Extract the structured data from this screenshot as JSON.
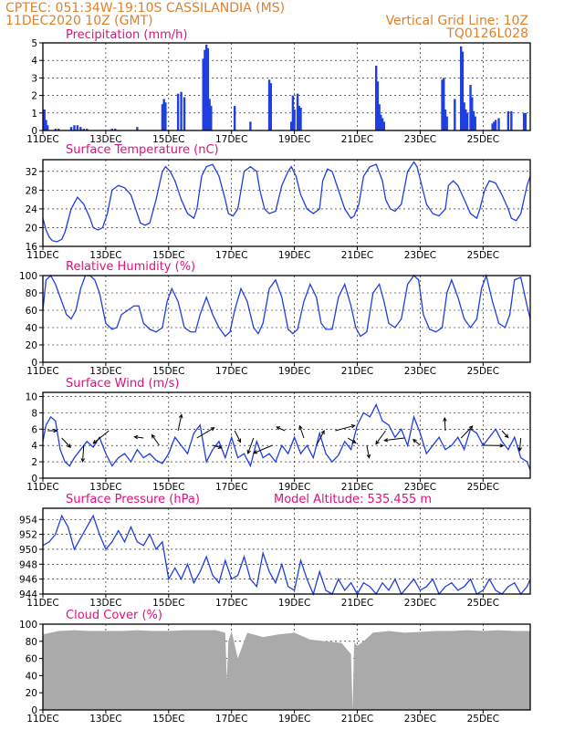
{
  "header": {
    "line1_left": "CPTEC:   051:34W-19:10S   CASSILANDIA (MS)",
    "line2_left": "11DEC2020  10Z (GMT)",
    "line1_right": "Vertical Grid Line: 10Z",
    "line2_right": "TQ0126L028"
  },
  "x_ticks": [
    "11DEC",
    "13DEC",
    "15DEC",
    "17DEC",
    "19DEC",
    "21DEC",
    "23DEC",
    "25DEC"
  ],
  "x_day_indices": [
    0,
    2,
    4,
    6,
    8,
    10,
    12,
    14
  ],
  "x_range_days": [
    0,
    15.5
  ],
  "chart_data": [
    {
      "type": "bar",
      "title": "Precipitation (mm/h)",
      "ylim": [
        0,
        5
      ],
      "yticks": [
        0,
        1,
        2,
        3,
        4,
        5
      ],
      "grid": true,
      "x": [
        0.05,
        0.1,
        0.15,
        0.4,
        0.5,
        0.9,
        1.0,
        1.1,
        1.2,
        1.3,
        1.4,
        2.2,
        2.3,
        3.0,
        3.8,
        3.85,
        3.9,
        4.3,
        4.4,
        4.5,
        5.1,
        5.15,
        5.2,
        5.25,
        5.3,
        5.35,
        6.1,
        6.6,
        7.2,
        7.25,
        7.9,
        7.95,
        8.0,
        8.1,
        8.15,
        8.2,
        10.6,
        10.65,
        10.7,
        10.75,
        10.8,
        10.85,
        12.7,
        12.75,
        12.8,
        12.85,
        13.1,
        13.3,
        13.35,
        13.4,
        13.45,
        13.5,
        13.6,
        13.65,
        13.7,
        13.75,
        14.3,
        14.35,
        14.4,
        14.5,
        14.8,
        14.9,
        15.3,
        15.35
      ],
      "values": [
        1.2,
        0.6,
        0.3,
        0.1,
        0.1,
        0.2,
        0.3,
        0.3,
        0.2,
        0.1,
        0.1,
        0.1,
        0.1,
        0.2,
        1.5,
        1.8,
        1.6,
        2.1,
        2.2,
        1.9,
        4.1,
        4.6,
        4.9,
        4.7,
        1.8,
        1.4,
        1.4,
        0.5,
        2.9,
        2.7,
        0.5,
        2.0,
        1.2,
        2.1,
        1.4,
        1.3,
        3.7,
        2.8,
        1.5,
        0.9,
        0.7,
        0.5,
        2.9,
        3.0,
        1.2,
        0.8,
        1.8,
        4.8,
        4.5,
        1.6,
        1.2,
        1.0,
        2.6,
        1.9,
        1.1,
        0.8,
        0.4,
        0.5,
        0.6,
        0.7,
        1.1,
        1.1,
        1.0,
        1.0
      ]
    },
    {
      "type": "line",
      "title": "Surface Temperature (nC)",
      "ylim": [
        16,
        34.5
      ],
      "yticks": [
        16,
        20,
        24,
        28,
        32
      ],
      "grid": true,
      "x": [
        0,
        0.1,
        0.2,
        0.3,
        0.45,
        0.6,
        0.7,
        0.9,
        1.1,
        1.3,
        1.5,
        1.6,
        1.75,
        1.9,
        2.05,
        2.2,
        2.4,
        2.6,
        2.8,
        3.0,
        3.1,
        3.25,
        3.4,
        3.6,
        3.8,
        3.9,
        4.05,
        4.2,
        4.4,
        4.6,
        4.8,
        4.9,
        5.05,
        5.2,
        5.4,
        5.6,
        5.8,
        5.9,
        6.05,
        6.2,
        6.4,
        6.6,
        6.8,
        6.9,
        7.05,
        7.2,
        7.4,
        7.6,
        7.8,
        7.9,
        8.05,
        8.2,
        8.4,
        8.6,
        8.8,
        8.9,
        9.05,
        9.2,
        9.4,
        9.6,
        9.8,
        9.9,
        10.05,
        10.2,
        10.4,
        10.6,
        10.8,
        10.9,
        11.05,
        11.2,
        11.4,
        11.6,
        11.8,
        11.9,
        12.05,
        12.2,
        12.4,
        12.6,
        12.8,
        12.9,
        13.05,
        13.2,
        13.4,
        13.6,
        13.8,
        13.9,
        14.05,
        14.2,
        14.4,
        14.6,
        14.8,
        14.9,
        15.05,
        15.2,
        15.4,
        15.5
      ],
      "values": [
        22,
        19.5,
        18,
        17.2,
        17,
        17.5,
        19,
        24,
        26.5,
        25,
        22,
        20,
        19.5,
        20,
        23,
        28,
        29,
        28.5,
        27,
        23,
        21,
        20.5,
        21,
        26,
        32,
        33,
        32,
        30,
        26,
        23,
        22,
        24,
        31,
        33,
        33.5,
        31,
        26,
        23,
        22.5,
        24,
        32,
        33,
        32,
        28,
        24,
        23,
        23.5,
        29,
        32,
        33,
        31,
        27,
        24,
        23,
        24,
        30,
        32.5,
        32,
        28,
        24,
        22,
        22.5,
        25,
        31,
        33,
        33.5,
        30,
        26,
        24,
        23.5,
        25,
        32,
        34,
        33,
        29,
        25,
        23,
        22.5,
        24,
        29,
        30,
        29,
        26,
        23,
        22,
        24,
        28,
        30,
        29.5,
        27,
        24,
        22,
        21.5,
        23,
        29,
        31
      ],
      "show_as": "line"
    },
    {
      "type": "line",
      "title": "Relative Humidity (%)",
      "ylim": [
        0,
        100
      ],
      "yticks": [
        0,
        20,
        40,
        60,
        80,
        100
      ],
      "grid": true,
      "x": [
        0,
        0.1,
        0.25,
        0.4,
        0.6,
        0.75,
        0.9,
        1.05,
        1.2,
        1.35,
        1.5,
        1.65,
        1.8,
        2.0,
        2.2,
        2.35,
        2.5,
        2.7,
        2.9,
        3.05,
        3.2,
        3.4,
        3.6,
        3.8,
        3.95,
        4.1,
        4.3,
        4.5,
        4.7,
        4.85,
        5.0,
        5.2,
        5.4,
        5.6,
        5.8,
        5.95,
        6.1,
        6.3,
        6.5,
        6.7,
        6.85,
        7.0,
        7.2,
        7.4,
        7.6,
        7.8,
        7.95,
        8.1,
        8.3,
        8.5,
        8.7,
        8.85,
        9.0,
        9.2,
        9.4,
        9.6,
        9.8,
        9.95,
        10.1,
        10.3,
        10.5,
        10.7,
        10.85,
        11.0,
        11.2,
        11.4,
        11.6,
        11.8,
        11.95,
        12.1,
        12.3,
        12.5,
        12.7,
        12.85,
        13.0,
        13.2,
        13.4,
        13.6,
        13.8,
        13.95,
        14.1,
        14.3,
        14.5,
        14.7,
        14.85,
        15.0,
        15.2,
        15.4,
        15.5
      ],
      "values": [
        60,
        95,
        100,
        90,
        70,
        55,
        50,
        60,
        85,
        100,
        100,
        95,
        80,
        45,
        38,
        40,
        55,
        60,
        65,
        65,
        45,
        38,
        35,
        40,
        70,
        85,
        70,
        40,
        35,
        35,
        55,
        75,
        55,
        40,
        30,
        35,
        60,
        85,
        70,
        40,
        33,
        45,
        85,
        95,
        75,
        38,
        33,
        38,
        70,
        90,
        75,
        45,
        38,
        38,
        75,
        90,
        65,
        40,
        30,
        35,
        80,
        90,
        70,
        45,
        40,
        50,
        90,
        100,
        95,
        55,
        38,
        35,
        40,
        80,
        95,
        75,
        50,
        40,
        50,
        85,
        100,
        70,
        45,
        40,
        55,
        95,
        98,
        65,
        50
      ],
      "show_as": "line"
    },
    {
      "type": "line",
      "title": "Surface Wind (m/s)",
      "ylim": [
        0,
        10.5
      ],
      "yticks": [
        0,
        2,
        4,
        6,
        8,
        10
      ],
      "grid": true,
      "x": [
        0,
        0.1,
        0.25,
        0.4,
        0.55,
        0.7,
        0.85,
        1.0,
        1.2,
        1.4,
        1.6,
        1.8,
        2.0,
        2.2,
        2.4,
        2.6,
        2.8,
        3.0,
        3.2,
        3.4,
        3.6,
        3.8,
        4.0,
        4.2,
        4.4,
        4.6,
        4.8,
        5.0,
        5.2,
        5.4,
        5.6,
        5.8,
        6.0,
        6.2,
        6.4,
        6.6,
        6.8,
        7.0,
        7.2,
        7.4,
        7.6,
        7.8,
        8.0,
        8.2,
        8.4,
        8.6,
        8.8,
        9.0,
        9.2,
        9.4,
        9.6,
        9.8,
        10.0,
        10.2,
        10.4,
        10.6,
        10.8,
        11.0,
        11.2,
        11.4,
        11.6,
        11.8,
        12.0,
        12.2,
        12.4,
        12.6,
        12.8,
        13.0,
        13.2,
        13.4,
        13.6,
        13.8,
        14.0,
        14.2,
        14.4,
        14.6,
        14.8,
        15.0,
        15.2,
        15.4,
        15.5
      ],
      "values": [
        4.5,
        6.5,
        7.5,
        7.0,
        3.5,
        2.0,
        1.5,
        2.5,
        3.5,
        4.5,
        3.8,
        5.0,
        3.0,
        1.5,
        2.5,
        3.0,
        2.0,
        3.5,
        2.5,
        3.0,
        2.2,
        1.8,
        3.0,
        5.0,
        4.0,
        3.0,
        5.5,
        6.5,
        2.0,
        3.5,
        4.5,
        2.5,
        5.0,
        2.5,
        3.0,
        1.5,
        4.5,
        2.5,
        3.0,
        2.0,
        4.0,
        3.0,
        5.0,
        3.0,
        4.0,
        2.5,
        5.5,
        3.0,
        2.0,
        2.8,
        4.5,
        3.5,
        6.5,
        8.0,
        7.5,
        9.0,
        7.0,
        6.5,
        5.0,
        6.0,
        4.0,
        7.5,
        5.5,
        3.0,
        4.0,
        5.0,
        3.5,
        4.0,
        5.0,
        3.5,
        6.0,
        5.5,
        4.0,
        5.0,
        6.0,
        4.5,
        3.5,
        5.0,
        2.5,
        2.0,
        1.0
      ],
      "show_as": "line"
    },
    {
      "type": "line",
      "title": "Surface Pressure (hPa)",
      "annotation": "Model Altitude: 535.455  m",
      "ylim": [
        944,
        955.5
      ],
      "yticks": [
        944,
        946,
        948,
        950,
        952,
        954
      ],
      "grid": true,
      "x": [
        0,
        0.2,
        0.4,
        0.6,
        0.8,
        1.0,
        1.2,
        1.4,
        1.6,
        1.8,
        2.0,
        2.2,
        2.4,
        2.6,
        2.8,
        3.0,
        3.2,
        3.4,
        3.6,
        3.8,
        4.0,
        4.2,
        4.4,
        4.6,
        4.8,
        5.0,
        5.2,
        5.4,
        5.6,
        5.8,
        6.0,
        6.2,
        6.4,
        6.6,
        6.8,
        7.0,
        7.2,
        7.4,
        7.6,
        7.8,
        8.0,
        8.2,
        8.4,
        8.6,
        8.8,
        9.0,
        9.2,
        9.4,
        9.6,
        9.8,
        10.0,
        10.2,
        10.4,
        10.6,
        10.8,
        11.0,
        11.2,
        11.4,
        11.6,
        11.8,
        12.0,
        12.2,
        12.4,
        12.6,
        12.8,
        13.0,
        13.2,
        13.4,
        13.6,
        13.8,
        14.0,
        14.2,
        14.4,
        14.6,
        14.8,
        15.0,
        15.2,
        15.4,
        15.5
      ],
      "values": [
        950.5,
        951,
        952,
        954.5,
        953,
        950,
        951.5,
        953,
        954.5,
        952,
        950,
        951,
        952.5,
        951,
        953,
        951,
        950.5,
        952,
        950,
        951,
        946,
        947.5,
        946,
        948,
        945.5,
        947,
        949,
        946.5,
        945.5,
        948.5,
        946,
        946.5,
        949,
        946,
        945,
        949.5,
        947,
        945.5,
        948,
        945,
        944.5,
        948.5,
        946,
        944,
        947,
        944.5,
        944,
        946,
        944.5,
        945.5,
        944,
        945.5,
        945,
        944,
        945.5,
        944.5,
        946,
        944,
        945,
        946,
        944.5,
        945,
        946,
        944,
        945,
        945.5,
        944.5,
        945,
        946,
        944,
        944.5,
        946,
        944.5,
        944,
        945,
        945.5,
        944,
        945,
        946
      ],
      "show_as": "line"
    },
    {
      "type": "area",
      "title": "Cloud Cover (%)",
      "ylim": [
        0,
        100
      ],
      "yticks": [
        0,
        20,
        40,
        60,
        80,
        100
      ],
      "grid": true,
      "x": [
        0,
        0.5,
        1.0,
        1.5,
        2.0,
        2.5,
        3.0,
        3.5,
        4.0,
        4.5,
        5.0,
        5.5,
        5.8,
        5.85,
        5.9,
        6.0,
        6.2,
        6.5,
        7.0,
        7.5,
        8.0,
        8.5,
        9.0,
        9.5,
        9.8,
        9.85,
        9.9,
        10.0,
        10.2,
        10.5,
        11.0,
        11.5,
        12.0,
        12.5,
        13.0,
        13.5,
        14.0,
        14.5,
        15.0,
        15.5
      ],
      "values": [
        88,
        92,
        93,
        92,
        92,
        92,
        93,
        92,
        92,
        93,
        93,
        93,
        90,
        35,
        80,
        92,
        60,
        90,
        85,
        88,
        90,
        82,
        80,
        78,
        65,
        0,
        78,
        75,
        80,
        90,
        92,
        90,
        91,
        92,
        92,
        93,
        92,
        93,
        92,
        92
      ]
    }
  ]
}
